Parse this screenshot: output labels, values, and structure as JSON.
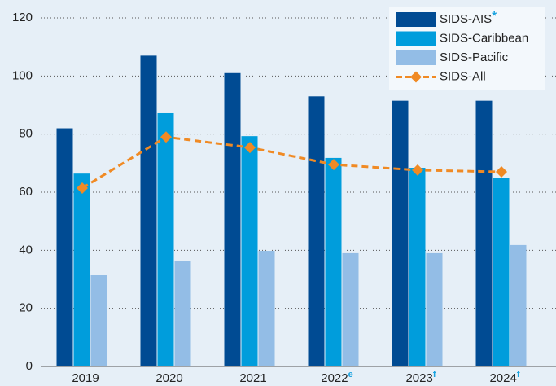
{
  "chart_data": {
    "type": "bar_line",
    "categories": [
      "2019",
      "2020",
      "2021",
      "2022",
      "2023",
      "2024"
    ],
    "category_superscripts": [
      null,
      null,
      null,
      "e",
      "f",
      "f"
    ],
    "superscript_color": "#1aa3e0",
    "series": [
      {
        "name": "SIDS-AIS",
        "note": "*",
        "kind": "bar",
        "color": "#004b93",
        "values": [
          82,
          107,
          101,
          93,
          91.5,
          91.5
        ]
      },
      {
        "name": "SIDS-Caribbean",
        "kind": "bar",
        "color": "#009ddc",
        "values": [
          66.4,
          87.2,
          79.3,
          71.8,
          68.4,
          65
        ]
      },
      {
        "name": "SIDS-Pacific",
        "kind": "bar",
        "color": "#93bde6",
        "values": [
          31.4,
          36.4,
          39.8,
          39,
          39,
          41.8
        ]
      },
      {
        "name": "SIDS-All",
        "kind": "line",
        "color": "#f08a24",
        "values": [
          61.4,
          79,
          75.4,
          69.5,
          67.6,
          67
        ]
      }
    ],
    "ylim": [
      0,
      120
    ],
    "yticks": [
      0,
      20,
      40,
      60,
      80,
      100,
      120
    ],
    "grid": true,
    "legend": "top-right"
  }
}
